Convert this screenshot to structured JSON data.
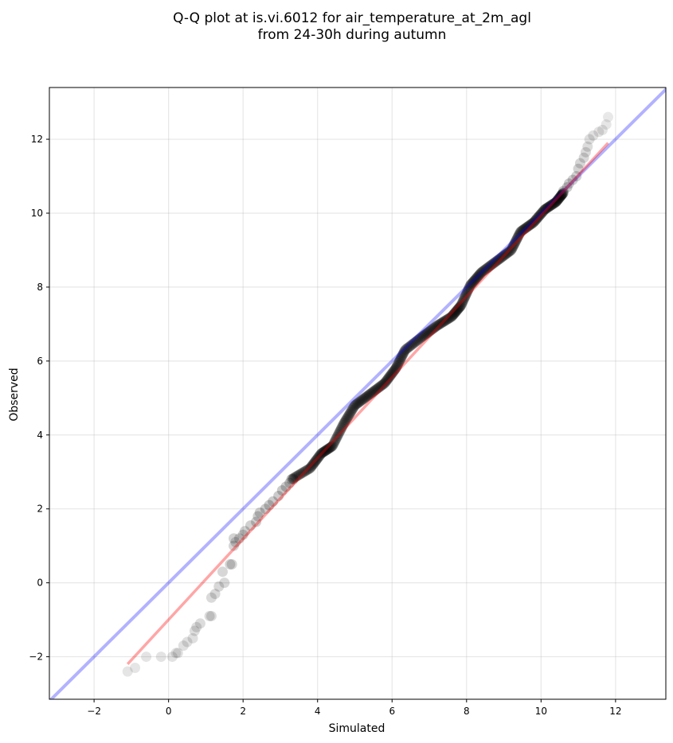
{
  "chart_data": {
    "type": "scatter",
    "title": [
      "Q-Q plot at is.vi.6012 for air_temperature_at_2m_agl",
      "from 24-30h during autumn"
    ],
    "xlabel": "Simulated",
    "ylabel": "Observed",
    "xlim": [
      -3.2,
      13.35
    ],
    "ylim": [
      -3.15,
      13.4
    ],
    "xticks": [
      -2,
      0,
      2,
      4,
      6,
      8,
      10,
      12
    ],
    "yticks": [
      -2,
      0,
      2,
      4,
      6,
      8,
      10,
      12
    ],
    "xtick_labels": [
      "−2",
      "0",
      "2",
      "4",
      "6",
      "8",
      "10",
      "12"
    ],
    "ytick_labels": [
      "−2",
      "0",
      "2",
      "4",
      "6",
      "8",
      "10",
      "12"
    ],
    "grid": true,
    "reference_line": {
      "slope": 1,
      "intercept": 0,
      "color": "#0000ff",
      "alpha": 0.3
    },
    "fit_line": {
      "x": [
        -1.1,
        11.8
      ],
      "y": [
        -2.2,
        11.9
      ],
      "color": "#ff0000",
      "alpha": 0.35
    },
    "points": {
      "color": "#000000",
      "tail_low": [
        [
          -1.1,
          -2.4
        ],
        [
          -0.9,
          -2.3
        ],
        [
          -0.6,
          -2.0
        ],
        [
          -0.2,
          -2.0
        ],
        [
          0.1,
          -2.0
        ],
        [
          0.2,
          -1.9
        ],
        [
          0.25,
          -1.9
        ],
        [
          0.4,
          -1.7
        ],
        [
          0.5,
          -1.6
        ],
        [
          0.65,
          -1.5
        ],
        [
          0.7,
          -1.3
        ],
        [
          0.75,
          -1.2
        ],
        [
          0.85,
          -1.1
        ],
        [
          1.1,
          -0.9
        ],
        [
          1.15,
          -0.9
        ],
        [
          1.15,
          -0.4
        ],
        [
          1.25,
          -0.3
        ],
        [
          1.35,
          -0.1
        ],
        [
          1.5,
          0.0
        ],
        [
          1.45,
          0.3
        ],
        [
          1.7,
          0.5
        ],
        [
          1.65,
          0.5
        ],
        [
          1.75,
          1.0
        ],
        [
          1.8,
          1.1
        ],
        [
          1.75,
          1.2
        ],
        [
          1.9,
          1.2
        ],
        [
          2.0,
          1.3
        ],
        [
          2.05,
          1.4
        ],
        [
          2.2,
          1.55
        ],
        [
          2.35,
          1.65
        ],
        [
          2.4,
          1.8
        ],
        [
          2.45,
          1.9
        ],
        [
          2.6,
          2.0
        ],
        [
          2.7,
          2.1
        ],
        [
          2.8,
          2.2
        ],
        [
          2.95,
          2.35
        ],
        [
          3.05,
          2.5
        ],
        [
          3.15,
          2.6
        ],
        [
          3.25,
          2.7
        ],
        [
          3.35,
          2.8
        ]
      ],
      "tail_high": [
        [
          10.55,
          10.5
        ],
        [
          10.6,
          10.6
        ],
        [
          10.7,
          10.7
        ],
        [
          10.75,
          10.8
        ],
        [
          10.85,
          10.9
        ],
        [
          10.95,
          11.0
        ],
        [
          11.0,
          11.2
        ],
        [
          11.05,
          11.35
        ],
        [
          11.15,
          11.5
        ],
        [
          11.2,
          11.65
        ],
        [
          11.25,
          11.8
        ],
        [
          11.3,
          12.0
        ],
        [
          11.4,
          12.1
        ],
        [
          11.55,
          12.2
        ],
        [
          11.65,
          12.25
        ],
        [
          11.75,
          12.4
        ],
        [
          11.8,
          12.6
        ]
      ],
      "dense_knots": [
        [
          3.3,
          2.8
        ],
        [
          3.8,
          3.1
        ],
        [
          4.1,
          3.5
        ],
        [
          4.4,
          3.7
        ],
        [
          4.7,
          4.3
        ],
        [
          5.0,
          4.8
        ],
        [
          5.4,
          5.1
        ],
        [
          5.8,
          5.4
        ],
        [
          6.1,
          5.8
        ],
        [
          6.35,
          6.3
        ],
        [
          6.8,
          6.65
        ],
        [
          7.2,
          6.95
        ],
        [
          7.6,
          7.2
        ],
        [
          7.85,
          7.5
        ],
        [
          8.1,
          8.05
        ],
        [
          8.4,
          8.4
        ],
        [
          8.8,
          8.7
        ],
        [
          9.2,
          9.0
        ],
        [
          9.45,
          9.5
        ],
        [
          9.8,
          9.75
        ],
        [
          10.1,
          10.1
        ],
        [
          10.4,
          10.3
        ],
        [
          10.6,
          10.55
        ]
      ],
      "dense_count": 330
    }
  }
}
